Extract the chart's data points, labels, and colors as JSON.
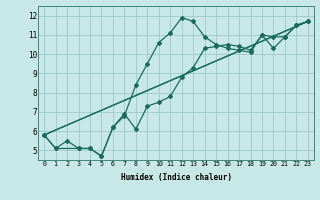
{
  "xlabel": "Humidex (Indice chaleur)",
  "background_color": "#c8e8e8",
  "grid_color": "#a0c8c8",
  "line_color": "#1a6b5a",
  "xlim": [
    -0.5,
    23.5
  ],
  "ylim": [
    4.5,
    12.5
  ],
  "xticks": [
    0,
    1,
    2,
    3,
    4,
    5,
    6,
    7,
    8,
    9,
    10,
    11,
    12,
    13,
    14,
    15,
    16,
    17,
    18,
    19,
    20,
    21,
    22,
    23
  ],
  "yticks": [
    5,
    6,
    7,
    8,
    9,
    10,
    11,
    12
  ],
  "line1_x": [
    0,
    1,
    2,
    3,
    4,
    5,
    6,
    7,
    8,
    9,
    10,
    11,
    12,
    13,
    14,
    15,
    16,
    17,
    18,
    19,
    20,
    21,
    22,
    23
  ],
  "line1_y": [
    5.8,
    5.1,
    5.5,
    5.1,
    5.1,
    4.7,
    6.2,
    6.8,
    8.4,
    9.5,
    10.6,
    11.1,
    11.9,
    11.7,
    10.9,
    10.5,
    10.3,
    10.2,
    10.1,
    11.0,
    10.9,
    10.9,
    11.5,
    11.7
  ],
  "line2_x": [
    0,
    1,
    3,
    4,
    5,
    6,
    7,
    8,
    9,
    10,
    11,
    12,
    13,
    14,
    15,
    16,
    17,
    18,
    19,
    20,
    21,
    22,
    23
  ],
  "line2_y": [
    5.8,
    5.1,
    5.1,
    5.1,
    4.7,
    6.2,
    6.9,
    6.1,
    7.3,
    7.5,
    7.8,
    8.8,
    9.3,
    10.3,
    10.4,
    10.5,
    10.4,
    10.2,
    11.0,
    10.3,
    10.9,
    11.5,
    11.7
  ],
  "line3_x": [
    0,
    23
  ],
  "line3_y": [
    5.8,
    11.7
  ],
  "line4_x": [
    0,
    23
  ],
  "line4_y": [
    5.8,
    11.7
  ]
}
